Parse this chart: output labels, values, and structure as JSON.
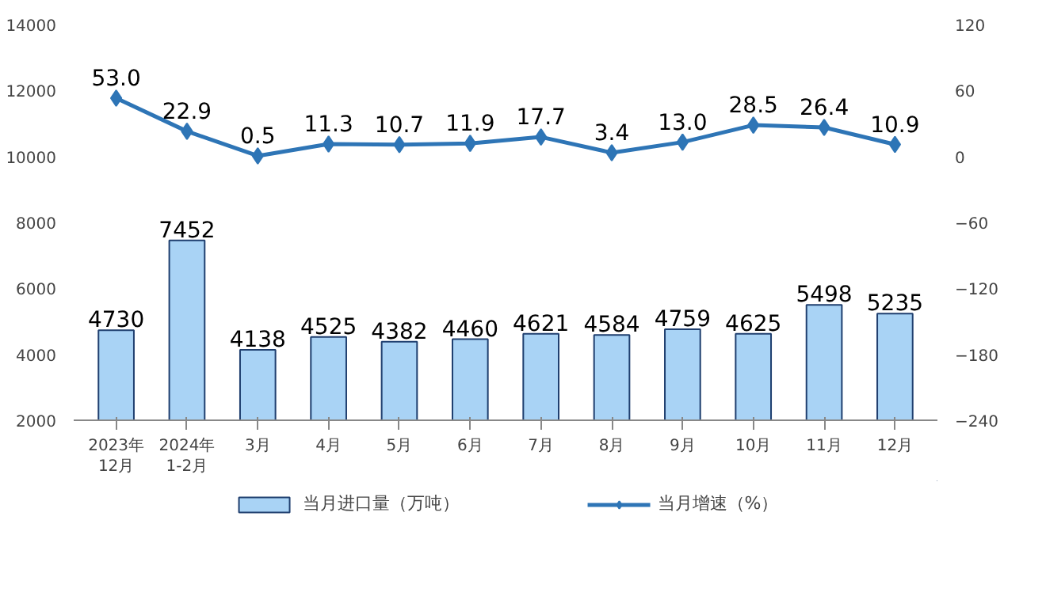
{
  "chart_data": {
    "type": "bar",
    "categories": [
      "2023年\n12月",
      "2024年\n1-2月",
      "3月",
      "4月",
      "5月",
      "6月",
      "7月",
      "8月",
      "9月",
      "10月",
      "11月",
      "12月"
    ],
    "series": [
      {
        "name": "当月进口量（万吨）",
        "color": "#a9d3f5",
        "values": [
          4730,
          7452,
          4138,
          4525,
          4382,
          4460,
          4621,
          4584,
          4759,
          4625,
          5498,
          5235
        ]
      },
      {
        "name": "当月增速（%）",
        "type": "line",
        "axis": "y2",
        "color": "#2e75b6",
        "marker": "diamond",
        "values": [
          53.0,
          22.9,
          0.5,
          11.3,
          10.7,
          11.9,
          17.7,
          3.4,
          13.0,
          28.5,
          26.4,
          10.9
        ],
        "value_labels": [
          "53.0",
          "22.9",
          "0.5",
          "11.3",
          "10.7",
          "11.9",
          "17.7",
          "3.4",
          "13.0",
          "28.5",
          "26.4",
          "10.9"
        ]
      }
    ],
    "ylim": [
      2000,
      14000
    ],
    "yticks": [
      2000,
      4000,
      6000,
      8000,
      10000,
      12000,
      14000
    ],
    "y2lim": [
      -240,
      120
    ],
    "y2ticks": [
      -240,
      -180,
      -120,
      -60,
      0,
      60,
      120
    ],
    "data_labels": true,
    "grid": false,
    "legend": "bottom"
  }
}
